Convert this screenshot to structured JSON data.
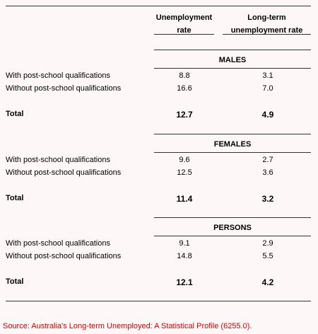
{
  "table": {
    "columns": [
      "Unemployment rate",
      "Long-term unemployment rate"
    ],
    "sections": [
      {
        "title": "MALES",
        "rows": [
          [
            "With post-school qualifications",
            "8.8",
            "3.1"
          ],
          [
            "Without post-school qualifications",
            "16.6",
            "7.0"
          ]
        ],
        "total": [
          "Total",
          "12.7",
          "4.9"
        ]
      },
      {
        "title": "FEMALES",
        "rows": [
          [
            "With post-school qualifications",
            "9.6",
            "2.7"
          ],
          [
            "Without post-school qualifications",
            "12.5",
            "3.6"
          ]
        ],
        "total": [
          "Total",
          "11.4",
          "3.2"
        ]
      },
      {
        "title": "PERSONS",
        "rows": [
          [
            "With post-school qualifications",
            "9.1",
            "2.9"
          ],
          [
            "Without post-school qualifications",
            "14.8",
            "5.5"
          ]
        ],
        "total": [
          "Total",
          "12.1",
          "4.2"
        ]
      }
    ]
  },
  "source": "Source: Australia's Long-term Unemployed: A Statistical Profile (6255.0)."
}
